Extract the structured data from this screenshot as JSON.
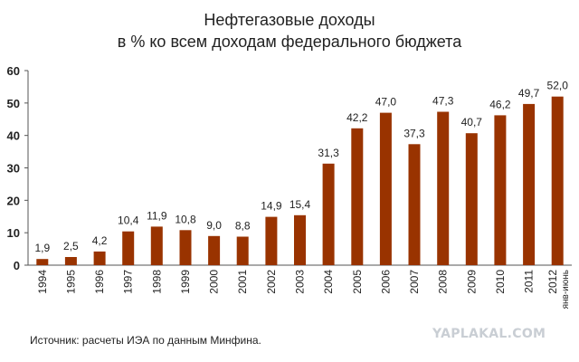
{
  "chart_data": {
    "type": "bar",
    "title": "Нефтегазовые доходы",
    "subtitle": "в % ко всем доходам федерального бюджета",
    "categories": [
      "1994",
      "1995",
      "1996",
      "1997",
      "1998",
      "1999",
      "2000",
      "2001",
      "2002",
      "2003",
      "2004",
      "2005",
      "2006",
      "2007",
      "2008",
      "2009",
      "2010",
      "2011",
      "2012 янв-июнь"
    ],
    "values": [
      1.9,
      2.5,
      4.2,
      10.4,
      11.9,
      10.8,
      9.0,
      8.8,
      14.9,
      15.4,
      31.3,
      42.2,
      47.0,
      37.3,
      47.3,
      40.7,
      46.2,
      49.7,
      52.0
    ],
    "value_labels": [
      "1,9",
      "2,5",
      "4,2",
      "10,4",
      "11,9",
      "10,8",
      "9,0",
      "8,8",
      "14,9",
      "15,4",
      "31,3",
      "42,2",
      "47,0",
      "37,3",
      "47,3",
      "40,7",
      "46,2",
      "49,7",
      "52,0"
    ],
    "last_category_lines": [
      "2012",
      "янв-июнь"
    ],
    "yticks": [
      0,
      10,
      20,
      30,
      40,
      50,
      60
    ],
    "ylim": [
      0,
      60
    ],
    "xlabel": "",
    "ylabel": "",
    "grid": false,
    "legend": "none",
    "bar_color": "#993300"
  },
  "source": "Источник: расчеты ИЭА по данным Минфина.",
  "watermark": "YAPLAKAL.COM"
}
